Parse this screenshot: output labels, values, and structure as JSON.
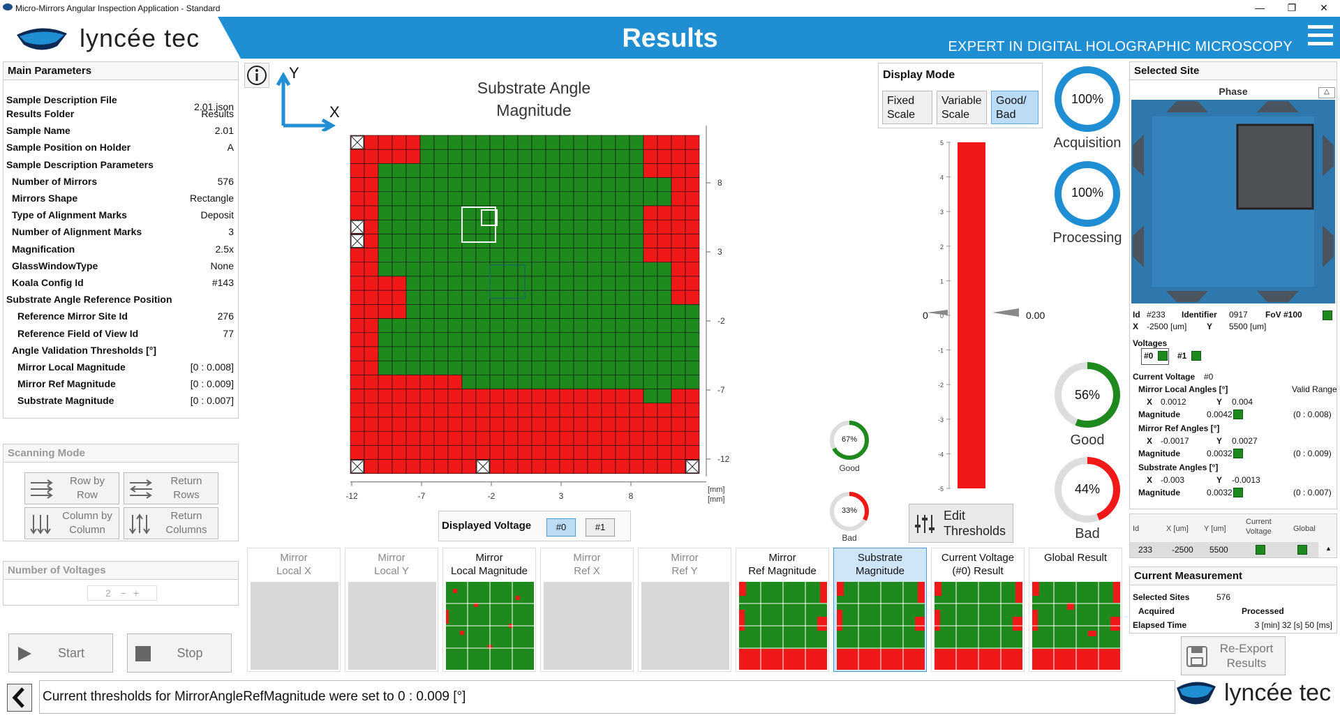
{
  "window": {
    "title": "Micro-Mirrors Angular Inspection Application - Standard"
  },
  "header": {
    "brand": "lyncée tec",
    "title": "Results",
    "tagline": "EXPERT IN DIGITAL HOLOGRAPHIC MICROSCOPY"
  },
  "main_params": {
    "title": "Main Parameters",
    "rows": [
      {
        "label": "Sample Description File",
        "value": "2.01.json"
      },
      {
        "label": "Results Folder",
        "value": "Results"
      },
      {
        "label": "Sample Name",
        "value": "2.01"
      },
      {
        "label": "Sample Position on Holder",
        "value": "A"
      },
      {
        "label": "Sample Description Parameters",
        "value": ""
      },
      {
        "label": "Number of Mirrors",
        "value": "576"
      },
      {
        "label": "Mirrors Shape",
        "value": "Rectangle"
      },
      {
        "label": "Type of Alignment Marks",
        "value": "Deposit"
      },
      {
        "label": "Number of Alignment Marks",
        "value": "3"
      },
      {
        "label": "Magnification",
        "value": "2.5x"
      },
      {
        "label": "GlassWindowType",
        "value": "None"
      },
      {
        "label": "Koala Config Id",
        "value": "#143"
      },
      {
        "label": "Substrate Angle Reference Position",
        "value": ""
      },
      {
        "label": "Reference Mirror Site Id",
        "value": "276"
      },
      {
        "label": "Reference Field of View Id",
        "value": "77"
      },
      {
        "label": "Angle Validation Thresholds [°]",
        "value": ""
      },
      {
        "label": "Mirror Local Magnitude",
        "value": "[0 : 0.008]"
      },
      {
        "label": "Mirror Ref Magnitude",
        "value": "[0 : 0.009]"
      },
      {
        "label": "Substrate Magnitude",
        "value": "[0 : 0.007]"
      }
    ]
  },
  "scanning": {
    "title": "Scanning Mode",
    "b1": "Row by Row",
    "b2": "Return Rows",
    "b3": "Column by Column",
    "b4": "Return Columns"
  },
  "voltages": {
    "title": "Number of Voltages",
    "value": "2"
  },
  "controls": {
    "start": "Start",
    "stop": "Stop"
  },
  "map": {
    "title_l1": "Substrate Angle",
    "title_l2": "Magnitude",
    "axis_y": "Y",
    "axis_x": "X",
    "xticks": [
      "-12",
      "-7",
      "-2",
      "3",
      "8"
    ],
    "yticks": [
      "8",
      "3",
      "-2",
      "-7",
      "-12"
    ],
    "unit": "[mm]",
    "rows": [
      "RRRRRGGGGGGGGGGGGGGGGRRRR",
      "RRRRRGGGGGGGGGGGGGGGGRRRR",
      "RRGGGGGGGGGGGGGGGGGGGRRRR",
      "RRGGGGGGGGGGGGGGGGGGGGGRR",
      "RRGGGGGGGGGGGGGGGGGGGGGRR",
      "RRGGGGGGGGGGGGGGGGGGGRRRR",
      "RRGGGGGGGGGGGGGGGGGGGRRRR",
      "RRGGGGGGGGGGGGGGGGGGGRRRR",
      "RRGGGGGGGGGGGGGGGGGGGRRRR",
      "RRGGGGGGGGGGGGGGGGGGGGGRR",
      "RRRRGGGGGGGGGGGGGGGGGGGRR",
      "RRRRGGGGGGGGGGGGGGGGGGGRR",
      "RRRRGGGGGGGGGGGGGGGGGGGGG",
      "RRGGGGGGGGGGGGGGGGGGGGGGG",
      "RRGGGGGGGGGGGGGGGGGGGGGGG",
      "RRGGGGGGGGGGGGGGGGGGGGGGG",
      "RRGGGGGGGGGGGGGGGGGGGGGGG",
      "RRRRRRRRGGGGGGGGGGGGGGGGG",
      "RRRRRRRRRRRRRRRRRRRRRGGRR",
      "RRRRRRRRRRRRRRRRRRRRRRRRR",
      "RRRRRRRRRRRRRRRRRRRRRRRRR",
      "RRRRRRRRRRRRRRRRRRRRRRRRR",
      "RRRRRRRRRRRRRRRRRRRRRRRRR",
      "RRRRRRRRRRRRRRRRRRRRRRRRR"
    ]
  },
  "voltage_select": {
    "label": "Displayed Voltage",
    "v0": "#0",
    "v1": "#1"
  },
  "display_mode": {
    "title": "Display Mode",
    "fixed": "Fixed Scale",
    "variable": "Variable Scale",
    "goodbad": "Good/ Bad"
  },
  "scale": {
    "ticks": [
      "5",
      "4",
      "3",
      "2",
      "1",
      "0",
      "-1",
      "-2",
      "-3",
      "-4",
      "-5"
    ],
    "left_value": "0",
    "right_value": "0.00"
  },
  "edit_thresholds": "Edit Thresholds",
  "stats": {
    "acq_value": "100%",
    "acq_label": "Acquisition",
    "proc_value": "100%",
    "proc_label": "Processing",
    "good_value": "56%",
    "good_label": "Good",
    "bad_value": "44%",
    "bad_label": "Bad",
    "small_good_value": "67%",
    "small_good_label": "Good",
    "small_bad_value": "33%",
    "small_bad_label": "Bad",
    "acq_fraction": 1.0,
    "proc_fraction": 1.0,
    "good_fraction": 0.56,
    "bad_fraction": 0.44,
    "small_good_fraction": 0.67,
    "small_bad_fraction": 0.33
  },
  "tabs": [
    {
      "l1": "Mirror",
      "l2": "Local X"
    },
    {
      "l1": "Mirror",
      "l2": "Local Y"
    },
    {
      "l1": "Mirror",
      "l2": "Local Magnitude"
    },
    {
      "l1": "Mirror",
      "l2": "Ref X"
    },
    {
      "l1": "Mirror",
      "l2": "Ref Y"
    },
    {
      "l1": "Mirror",
      "l2": "Ref Magnitude"
    },
    {
      "l1": "Substrate",
      "l2": "Magnitude"
    },
    {
      "l1": "Current Voltage",
      "l2": "(#0) Result"
    },
    {
      "l1": "Global Result",
      "l2": ""
    }
  ],
  "selected_site": {
    "title": "Selected Site",
    "phase": "Phase",
    "id_label": "Id",
    "id": "#233",
    "ident_label": "Identifier",
    "ident": "0917",
    "fov": "FoV #100",
    "x_label": "X",
    "x": "-2500 [um]",
    "y_label": "Y",
    "y": "5500 [um]",
    "voltages_label": "Voltages",
    "v0": "#0",
    "v1": "#1",
    "cv_label": "Current Voltage",
    "cv": "#0",
    "mla": "Mirror Local Angles [°]",
    "valid_range": "Valid Range",
    "mla_x": "0.0012",
    "mla_y": "0.004",
    "mla_mag": "0.0042",
    "mla_range": "(0 : 0.008)",
    "mra": "Mirror Ref Angles [°]",
    "mra_x": "-0.0017",
    "mra_y": "0.0027",
    "mra_mag": "0.0032",
    "mra_range": "(0 : 0.009)",
    "sa": "Substrate Angles [°]",
    "sa_x": "-0.003",
    "sa_y": "-0.0013",
    "sa_mag": "0.0032",
    "sa_range": "(0 : 0.007)",
    "mag_label": "Magnitude"
  },
  "sites_table": {
    "cols": [
      "Id",
      "X [um]",
      "Y [um]",
      "Current Voltage",
      "Global"
    ],
    "row": [
      "233",
      "-2500",
      "5500"
    ]
  },
  "current_measurement": {
    "title": "Current Measurement",
    "selected_label": "Selected Sites",
    "selected": "576",
    "acquired": "Acquired",
    "processed": "Processed",
    "elapsed_label": "Elapsed Time",
    "elapsed": "3 [min] 32 [s] 50 [ms]"
  },
  "reexport": "Re-Export Results",
  "status": "Current thresholds for MirrorAngleRefMagnitude were set to 0 : 0.009 [°]",
  "colors": {
    "good": "#1e8a1e",
    "bad": "#f01818",
    "accent": "#1f8ed3"
  }
}
